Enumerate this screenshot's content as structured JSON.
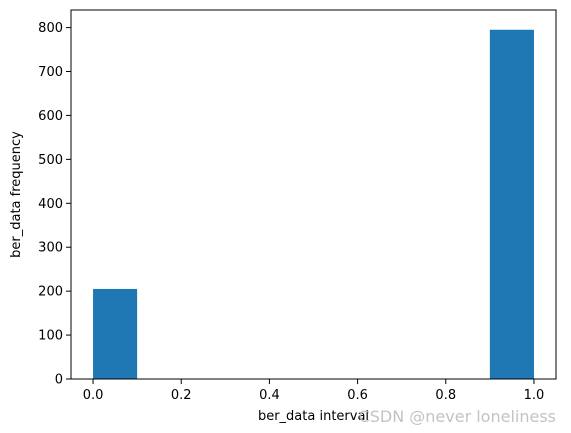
{
  "chart_data": {
    "type": "bar",
    "title": "",
    "xlabel": "ber_data interval",
    "ylabel": "ber_data frequency",
    "xlim": [
      -0.05,
      1.05
    ],
    "ylim": [
      0,
      840
    ],
    "x_ticks": [
      0.0,
      0.2,
      0.4,
      0.6,
      0.8,
      1.0
    ],
    "x_tick_labels": [
      "0.0",
      "0.2",
      "0.4",
      "0.6",
      "0.8",
      "1.0"
    ],
    "y_ticks": [
      0,
      100,
      200,
      300,
      400,
      500,
      600,
      700,
      800
    ],
    "y_tick_labels": [
      "0",
      "100",
      "200",
      "300",
      "400",
      "500",
      "600",
      "700",
      "800"
    ],
    "bins": [
      {
        "start": 0.0,
        "end": 0.1,
        "value": 205
      },
      {
        "start": 0.9,
        "end": 1.0,
        "value": 795
      }
    ],
    "bar_color": "#1f77b4",
    "grid": false,
    "legend": "none"
  },
  "watermark": {
    "text": "CSDN @never  loneliness"
  }
}
